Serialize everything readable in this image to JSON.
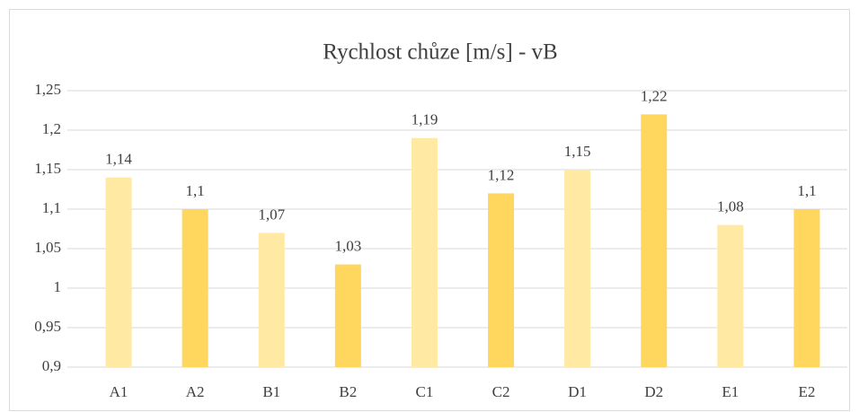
{
  "chart_data": {
    "type": "bar",
    "title": "Rychlost chůze [m/s] - vB",
    "categories": [
      "A1",
      "A2",
      "B1",
      "B2",
      "C1",
      "C2",
      "D1",
      "D2",
      "E1",
      "E2"
    ],
    "values": [
      1.14,
      1.1,
      1.07,
      1.03,
      1.19,
      1.12,
      1.15,
      1.22,
      1.08,
      1.1
    ],
    "value_labels": [
      "1,14",
      "1,1",
      "1,07",
      "1,03",
      "1,19",
      "1,12",
      "1,15",
      "1,22",
      "1,08",
      "1,1"
    ],
    "colors": [
      "#ffe9a3",
      "#ffd75e",
      "#ffe9a3",
      "#ffd75e",
      "#ffe9a3",
      "#ffd75e",
      "#ffe9a3",
      "#ffd75e",
      "#ffe9a3",
      "#ffd75e"
    ],
    "ylim": [
      0.9,
      1.25
    ],
    "yticks": [
      {
        "value": 0.9,
        "label": "0,9"
      },
      {
        "value": 0.95,
        "label": "0,95"
      },
      1,
      {
        "value": 1.05,
        "label": "1,05"
      },
      {
        "value": 1.1,
        "label": "1,1"
      },
      {
        "value": 1.15,
        "label": "1,15"
      },
      {
        "value": 1.2,
        "label": "1,2"
      },
      {
        "value": 1.25,
        "label": "1,25"
      }
    ],
    "grid": true
  }
}
